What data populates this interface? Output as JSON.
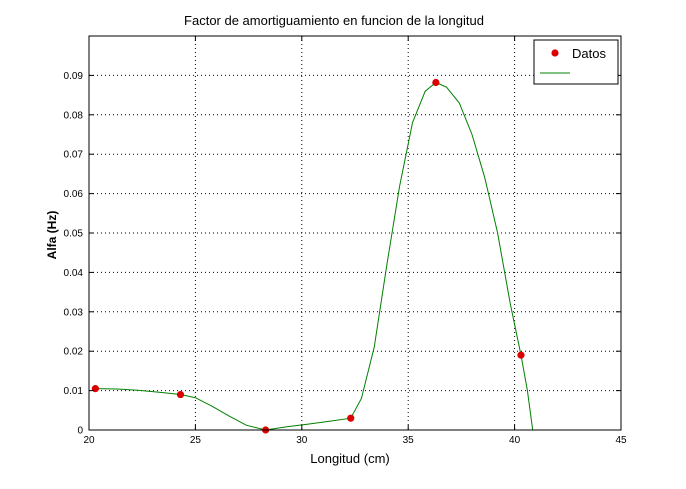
{
  "chart_data": {
    "type": "line",
    "title": "Factor de amortiguamiento en funcion de la longitud",
    "xlabel": "Longitud (cm)",
    "ylabel": "Alfa (Hz)",
    "xlim": [
      20,
      45
    ],
    "ylim": [
      0,
      0.1
    ],
    "xticks": [
      20,
      25,
      30,
      35,
      40,
      45
    ],
    "xtick_labels": [
      "20",
      "25",
      "30",
      "35",
      "40",
      "45"
    ],
    "yticks": [
      0,
      0.01,
      0.02,
      0.03,
      0.04,
      0.05,
      0.06,
      0.07,
      0.08,
      0.09
    ],
    "ytick_labels": [
      "0",
      "0.01",
      "0.02",
      "0.03",
      "0.04",
      "0.05",
      "0.06",
      "0.07",
      "0.08",
      "0.09"
    ],
    "grid": true,
    "legend_position": "top-right",
    "series": [
      {
        "name": "Datos",
        "kind": "scatter",
        "color": "#dd0000",
        "x": [
          20.3,
          24.3,
          28.3,
          32.3,
          36.3,
          40.3
        ],
        "y": [
          0.0105,
          0.009,
          0.0,
          0.003,
          0.0882,
          0.019
        ]
      },
      {
        "name": "",
        "kind": "line",
        "color": "#008000",
        "x": [
          20.3,
          21.3,
          22.3,
          23.3,
          24.3,
          25.0,
          25.8,
          26.6,
          27.4,
          28.3,
          29.3,
          30.3,
          31.3,
          32.3,
          32.8,
          33.4,
          34.0,
          34.6,
          35.2,
          35.8,
          36.3,
          36.8,
          37.4,
          38.0,
          38.6,
          39.2,
          39.8,
          40.3,
          40.6,
          40.85
        ],
        "y": [
          0.0105,
          0.0104,
          0.0101,
          0.0096,
          0.009,
          0.0082,
          0.006,
          0.0035,
          0.0012,
          0.0,
          0.0008,
          0.0015,
          0.0022,
          0.003,
          0.008,
          0.021,
          0.042,
          0.062,
          0.078,
          0.086,
          0.0882,
          0.087,
          0.083,
          0.075,
          0.064,
          0.05,
          0.032,
          0.019,
          0.01,
          0.0
        ]
      }
    ]
  }
}
